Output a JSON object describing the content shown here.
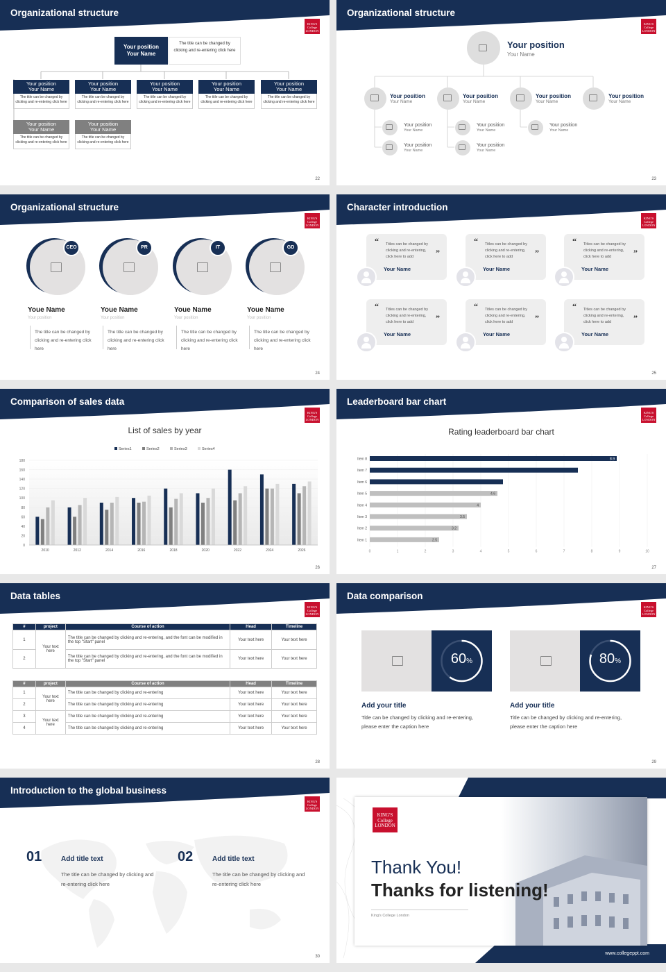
{
  "slides": [
    {
      "title": "Organizational structure",
      "page": "22"
    },
    {
      "title": "Organizational structure",
      "page": "23"
    },
    {
      "title": "Organizational structure",
      "page": "24"
    },
    {
      "title": "Character introduction",
      "page": "25"
    },
    {
      "title": "Comparison of sales data",
      "page": "26"
    },
    {
      "title": "Leaderboard bar chart",
      "page": "27"
    },
    {
      "title": "Data tables",
      "page": "28"
    },
    {
      "title": "Data comparison",
      "page": "29"
    },
    {
      "title": "Introduction to the global business",
      "page": "30"
    }
  ],
  "logo_text": "KING'S College LONDON",
  "colors": {
    "navy": "#172f55",
    "red": "#c8102e",
    "gray": "#808080",
    "lightgray": "#bfbfbf"
  },
  "org1": {
    "top_box": {
      "title": "Your position",
      "name": "Your Name",
      "desc": "The title can be changed by clicking and re-entering click here"
    },
    "box_title": "Your position",
    "box_name": "Your Name",
    "box_desc": "The title can be changed by clicking and re-entering click here"
  },
  "org2": {
    "top": {
      "title": "Your position",
      "name": "Your Name"
    },
    "item_title": "Your position",
    "item_name": "Your Name"
  },
  "org3": {
    "badges": [
      "CEO",
      "PR",
      "IT",
      "GD"
    ],
    "name": "Youe Name",
    "position": "Your position",
    "desc": "The title can be changed by clicking and re-entering click here"
  },
  "characters": {
    "quote": "Titles can be changed by clicking and re-entering, click here to add",
    "name": "Your Name"
  },
  "sales_chart": {
    "title": "List of sales by year",
    "legend": [
      "Series1",
      "Series2",
      "Series3",
      "Series4"
    ]
  },
  "leader_chart": {
    "title": "Rating leaderboard bar chart"
  },
  "tables": {
    "headers": [
      "#",
      "project",
      "Course of action",
      "Head",
      "Timeline"
    ],
    "t1_rows": [
      {
        "num": "1",
        "action": "The title can be changed by clicking and re-entering, and the font can be modified in the top \"Start\" panel",
        "head": "Your text here",
        "time": "Your text here"
      },
      {
        "num": "2",
        "action": "The title can be changed by clicking and re-entering, and the font can be modified in the top \"Start\" panel",
        "head": "Your text here",
        "time": "Your text here"
      }
    ],
    "project_text": "Your text here",
    "t2_rows": [
      {
        "num": "1",
        "action": "The title can be changed by clicking and re-entering",
        "head": "Your text here",
        "time": "Your text here"
      },
      {
        "num": "2",
        "action": "The title can be changed by clicking and re-entering",
        "head": "Your text here",
        "time": "Your text here"
      },
      {
        "num": "3",
        "action": "The title can be changed by clicking and re-entering",
        "head": "Your text here",
        "time": "Your text here"
      },
      {
        "num": "4",
        "action": "The title can be changed by clicking and re-entering",
        "head": "Your text here",
        "time": "Your text here"
      }
    ]
  },
  "comparison": [
    {
      "pct": "60",
      "pct_unit": "%",
      "progress": 0.6,
      "title": "Add your title",
      "desc": "Title can be changed by clicking and re-entering, please enter the caption here"
    },
    {
      "pct": "80",
      "pct_unit": "%",
      "progress": 0.8,
      "title": "Add your title",
      "desc": "Title can be changed by clicking and re-entering, please enter the caption here"
    }
  ],
  "global": [
    {
      "num": "01",
      "title": "Add title text",
      "desc": "The title can be changed by clicking and re-entering click here"
    },
    {
      "num": "02",
      "title": "Add title text",
      "desc": "The title can be changed by clicking and re-entering click here"
    }
  ],
  "thanks": {
    "line1": "Thank You!",
    "line2": "Thanks for listening!",
    "sub": "King's College London",
    "url": "www.collegeppt.com"
  },
  "chart_data": [
    {
      "type": "bar",
      "title": "List of sales by year",
      "categories": [
        "2010",
        "2012",
        "2014",
        "2016",
        "2018",
        "2020",
        "2022",
        "2024",
        "2026"
      ],
      "series": [
        {
          "name": "Series1",
          "values": [
            60,
            80,
            90,
            100,
            120,
            110,
            160,
            150,
            130
          ]
        },
        {
          "name": "Series2",
          "values": [
            55,
            60,
            75,
            90,
            80,
            90,
            95,
            120,
            110
          ]
        },
        {
          "name": "Series3",
          "values": [
            80,
            85,
            90,
            92,
            98,
            100,
            110,
            120,
            125
          ]
        },
        {
          "name": "Series4",
          "values": [
            95,
            100,
            102,
            105,
            110,
            120,
            125,
            130,
            135
          ]
        }
      ],
      "ylim": [
        0,
        180
      ],
      "yticks": [
        0,
        20,
        40,
        60,
        80,
        100,
        120,
        140,
        160,
        180
      ],
      "legend": "top"
    },
    {
      "type": "bar",
      "orientation": "horizontal",
      "title": "Rating leaderboard bar chart",
      "categories": [
        "Item 1",
        "Item 2",
        "Item 3",
        "Item 4",
        "Item 5",
        "Item 6",
        "Item 7",
        "Item 8"
      ],
      "values": [
        2.5,
        3.2,
        3.5,
        4,
        4.6,
        4.8,
        7.5,
        8.9
      ],
      "labels": [
        "2.5",
        "3.2",
        "3.5",
        "4",
        "4.6",
        "",
        "",
        "8.9"
      ],
      "xlim": [
        0,
        10
      ],
      "xticks": [
        0,
        1,
        2,
        3,
        4,
        5,
        6,
        7,
        8,
        9,
        10
      ]
    }
  ]
}
